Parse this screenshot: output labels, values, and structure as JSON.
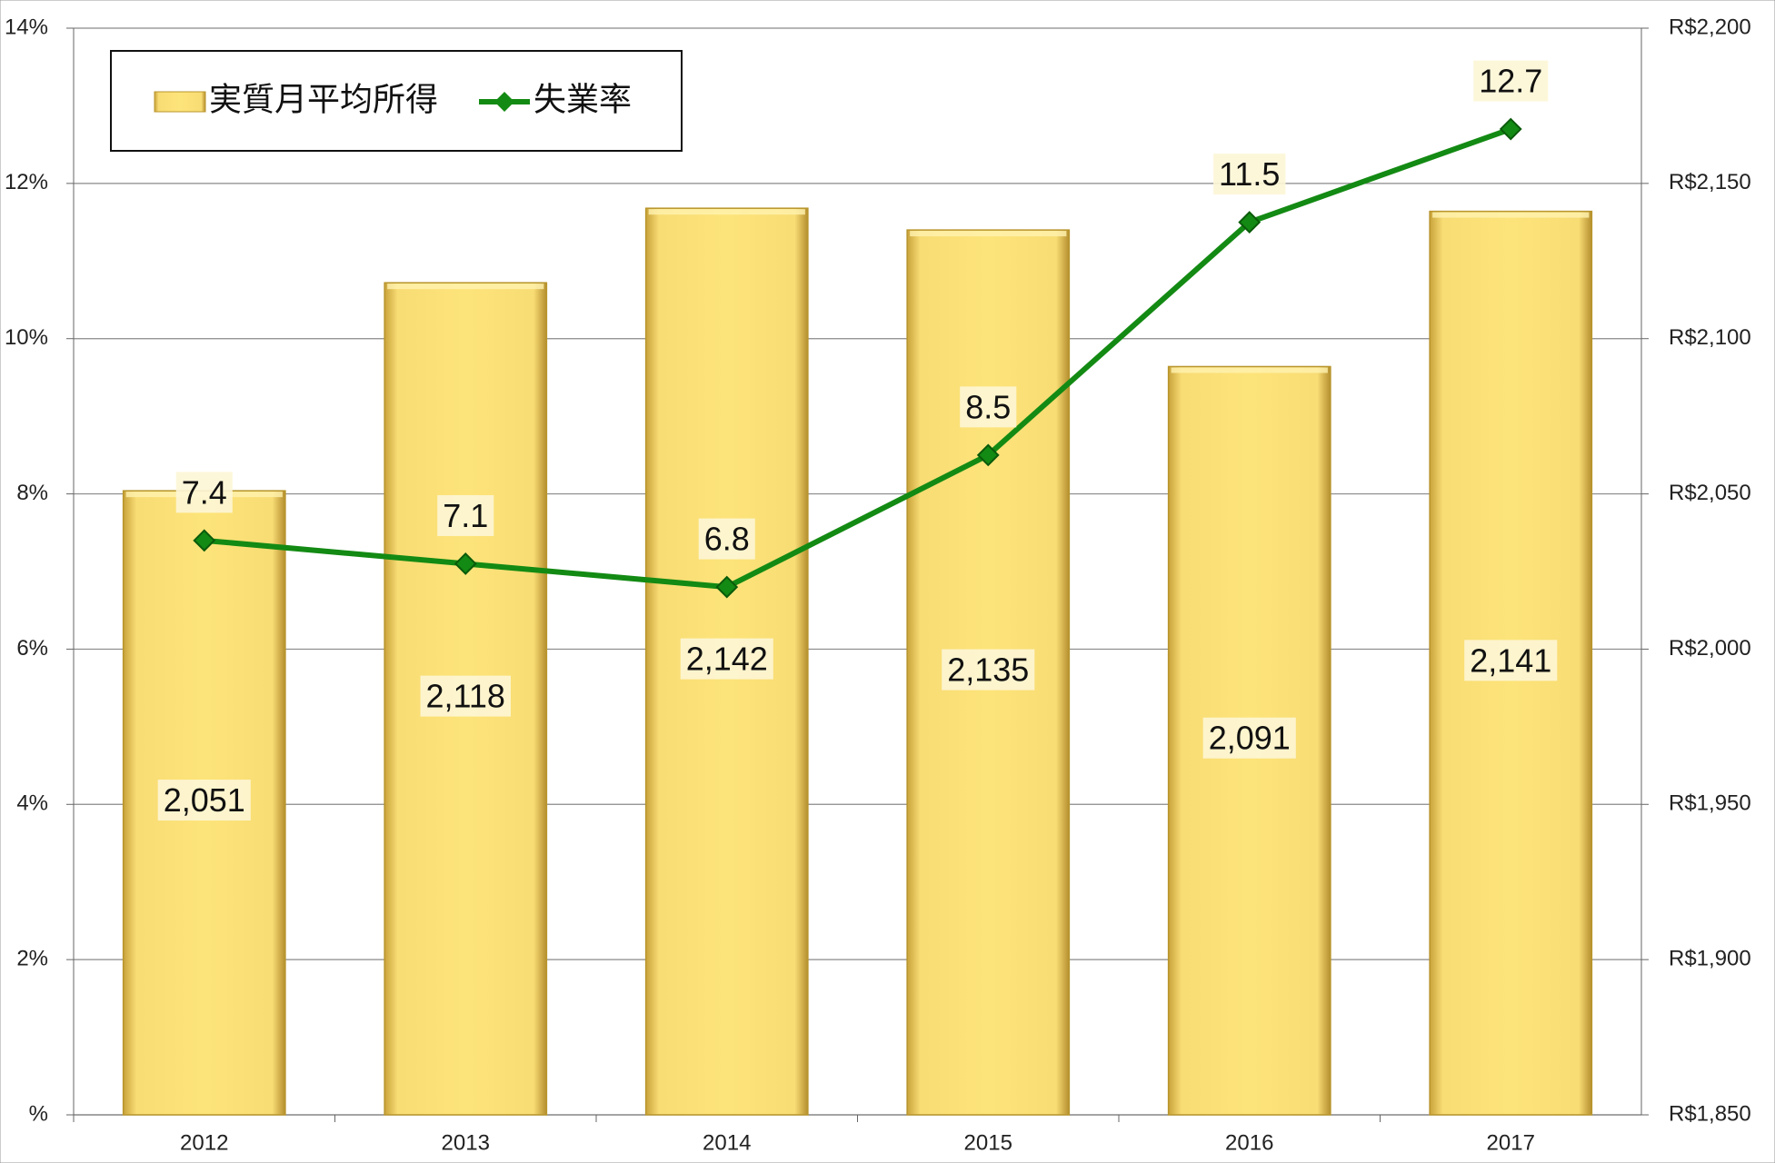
{
  "chart_data": {
    "type": "bar",
    "categories": [
      "2012",
      "2013",
      "2014",
      "2015",
      "2016",
      "2017"
    ],
    "series": [
      {
        "name": "実質月平均所得",
        "type": "bar",
        "axis": "y2",
        "color": "#f5d25a",
        "values": [
          2051,
          2118,
          2142,
          2135,
          2091,
          2141
        ],
        "value_labels": [
          "2,051",
          "2,118",
          "2,142",
          "2,135",
          "2,091",
          "2,141"
        ]
      },
      {
        "name": "失業率",
        "type": "line",
        "color": "#138a13",
        "values": [
          7.4,
          7.1,
          6.8,
          8.5,
          11.5,
          12.7
        ]
      }
    ],
    "ylim": [
      0,
      14
    ],
    "yticks": [
      {
        "value": 0,
        "label": "%"
      },
      {
        "value": 2,
        "label": "2%"
      },
      {
        "value": 4,
        "label": "4%"
      },
      {
        "value": 6,
        "label": "6%"
      },
      {
        "value": 8,
        "label": "8%"
      },
      {
        "value": 10,
        "label": "10%"
      },
      {
        "value": 12,
        "label": "12%"
      },
      {
        "value": 14,
        "label": "14%"
      }
    ],
    "y2lim": [
      1850,
      2200
    ],
    "y2ticks": [
      {
        "value": 1850,
        "label": "R$1,850"
      },
      {
        "value": 1900,
        "label": "R$1,900"
      },
      {
        "value": 1950,
        "label": "R$1,950"
      },
      {
        "value": 2000,
        "label": "R$2,000"
      },
      {
        "value": 2050,
        "label": "R$2,050"
      },
      {
        "value": 2100,
        "label": "R$2,100"
      },
      {
        "value": 2150,
        "label": "R$2,150"
      },
      {
        "value": 2200,
        "label": "R$2,200"
      }
    ],
    "grid": true,
    "legend": "top-left"
  }
}
